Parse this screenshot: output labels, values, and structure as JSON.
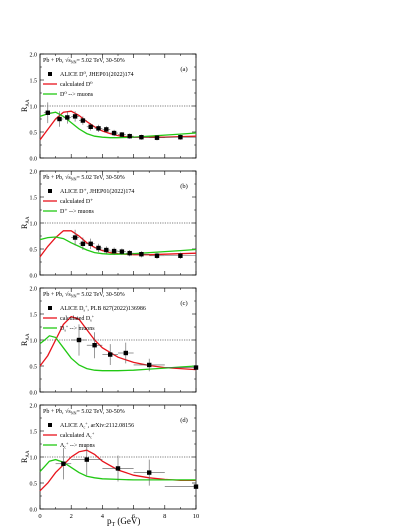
{
  "figure": {
    "xlabel_main": "p",
    "xlabel_sub": "T",
    "xlabel_unit": " (GeV)",
    "ylabel_main": "R",
    "ylabel_sub": "AA",
    "colors": {
      "model": "#e8141c",
      "muon": "#22c814",
      "data": "#000000",
      "ref_line": "#555555"
    }
  },
  "chart_data": [
    {
      "type": "line",
      "panel_label": "(a)",
      "header": {
        "system": "Pb + Pb,",
        "sqrt": "√s",
        "nn": "NN",
        "rest": "= 5.02 TeV, 30-50%"
      },
      "legend": {
        "data_label": "ALICE D⁰, JHEP01(2022)174",
        "model_label": "calculated D⁰",
        "muon_label": "D⁰ --> muons"
      },
      "xlim": [
        0,
        10
      ],
      "ylim": [
        0,
        2.0
      ],
      "x_ticks": [
        0,
        2,
        4,
        6,
        8,
        10
      ],
      "y_ticks": [
        "0.0",
        "0.5",
        "1.0",
        "1.5",
        "2.0"
      ],
      "x_tick_labels": [],
      "reference_line": 1.0,
      "data_points": [
        {
          "x": 0.5,
          "y": 0.87,
          "err": 0.2,
          "xerr": 0.25
        },
        {
          "x": 1.25,
          "y": 0.75,
          "err": 0.15,
          "xerr": 0.25
        },
        {
          "x": 1.75,
          "y": 0.78,
          "err": 0.12,
          "xerr": 0.25
        },
        {
          "x": 2.25,
          "y": 0.8,
          "err": 0.1,
          "xerr": 0.25
        },
        {
          "x": 2.75,
          "y": 0.72,
          "err": 0.08,
          "xerr": 0.25
        },
        {
          "x": 3.25,
          "y": 0.6,
          "err": 0.07,
          "xerr": 0.25
        },
        {
          "x": 3.75,
          "y": 0.57,
          "err": 0.07,
          "xerr": 0.25
        },
        {
          "x": 4.25,
          "y": 0.55,
          "err": 0.06,
          "xerr": 0.25
        },
        {
          "x": 4.75,
          "y": 0.48,
          "err": 0.06,
          "xerr": 0.25
        },
        {
          "x": 5.25,
          "y": 0.45,
          "err": 0.05,
          "xerr": 0.25
        },
        {
          "x": 5.75,
          "y": 0.42,
          "err": 0.05,
          "xerr": 0.25
        },
        {
          "x": 6.5,
          "y": 0.4,
          "err": 0.05,
          "xerr": 0.5
        },
        {
          "x": 7.5,
          "y": 0.39,
          "err": 0.05,
          "xerr": 0.5
        },
        {
          "x": 9.0,
          "y": 0.4,
          "err": 0.05,
          "xerr": 1.0
        }
      ],
      "series": [
        {
          "role": "model",
          "x": [
            0,
            0.5,
            1,
            1.5,
            2,
            2.5,
            3,
            3.5,
            4,
            4.5,
            5,
            5.5,
            6,
            7,
            8,
            9,
            10
          ],
          "y": [
            0.35,
            0.55,
            0.75,
            0.88,
            0.9,
            0.82,
            0.7,
            0.6,
            0.52,
            0.47,
            0.43,
            0.41,
            0.4,
            0.4,
            0.4,
            0.41,
            0.42
          ]
        },
        {
          "role": "muon",
          "x": [
            0,
            0.5,
            1,
            1.5,
            2,
            2.5,
            3,
            3.5,
            4,
            4.5,
            5,
            6,
            7,
            8,
            9,
            10
          ],
          "y": [
            0.8,
            0.85,
            0.88,
            0.8,
            0.68,
            0.56,
            0.47,
            0.42,
            0.4,
            0.39,
            0.39,
            0.4,
            0.42,
            0.44,
            0.46,
            0.48
          ]
        }
      ]
    },
    {
      "type": "line",
      "panel_label": "(b)",
      "header": {
        "system": "Pb + Pb,",
        "sqrt": "√s",
        "nn": "NN",
        "rest": "= 5.02 TeV, 30-50%"
      },
      "legend": {
        "data_label": "ALICE D⁺, JHEP01(2022)174",
        "model_label": "calculated D⁺",
        "muon_label": "D⁺ --> muons"
      },
      "xlim": [
        0,
        10
      ],
      "ylim": [
        0,
        2.0
      ],
      "x_ticks": [
        0,
        2,
        4,
        6,
        8,
        10
      ],
      "y_ticks": [
        "0.0",
        "0.5",
        "1.0",
        "1.5",
        "2.0"
      ],
      "x_tick_labels": [],
      "reference_line": 1.0,
      "data_points": [
        {
          "x": 2.25,
          "y": 0.72,
          "err": 0.15,
          "xerr": 0.25
        },
        {
          "x": 2.75,
          "y": 0.6,
          "err": 0.12,
          "xerr": 0.25
        },
        {
          "x": 3.25,
          "y": 0.6,
          "err": 0.1,
          "xerr": 0.25
        },
        {
          "x": 3.75,
          "y": 0.52,
          "err": 0.08,
          "xerr": 0.25
        },
        {
          "x": 4.25,
          "y": 0.48,
          "err": 0.07,
          "xerr": 0.25
        },
        {
          "x": 4.75,
          "y": 0.46,
          "err": 0.07,
          "xerr": 0.25
        },
        {
          "x": 5.25,
          "y": 0.45,
          "err": 0.06,
          "xerr": 0.25
        },
        {
          "x": 5.75,
          "y": 0.42,
          "err": 0.06,
          "xerr": 0.25
        },
        {
          "x": 6.5,
          "y": 0.4,
          "err": 0.06,
          "xerr": 0.5
        },
        {
          "x": 7.5,
          "y": 0.37,
          "err": 0.06,
          "xerr": 0.5
        },
        {
          "x": 9.0,
          "y": 0.37,
          "err": 0.06,
          "xerr": 1.0
        }
      ],
      "series": [
        {
          "role": "model",
          "x": [
            0,
            0.5,
            1,
            1.5,
            2,
            2.5,
            3,
            3.5,
            4,
            4.5,
            5,
            5.5,
            6,
            7,
            8,
            9,
            10
          ],
          "y": [
            0.35,
            0.55,
            0.72,
            0.85,
            0.85,
            0.75,
            0.62,
            0.53,
            0.47,
            0.43,
            0.41,
            0.4,
            0.39,
            0.39,
            0.4,
            0.41,
            0.42
          ]
        },
        {
          "role": "muon",
          "x": [
            0,
            0.5,
            1,
            1.5,
            2,
            2.5,
            3,
            3.5,
            4,
            4.5,
            5,
            6,
            7,
            8,
            9,
            10
          ],
          "y": [
            0.68,
            0.72,
            0.73,
            0.7,
            0.62,
            0.55,
            0.48,
            0.43,
            0.41,
            0.4,
            0.4,
            0.41,
            0.43,
            0.45,
            0.47,
            0.49
          ]
        }
      ]
    },
    {
      "type": "line",
      "panel_label": "(c)",
      "header": {
        "system": "Pb + Pb,",
        "sqrt": "√s",
        "nn": "NN",
        "rest": "= 5.02 TeV, 30-50%"
      },
      "legend": {
        "data_label": "ALICE D",
        "data_sub": "s",
        "data_sup": "+",
        "data_rest": ", PLB 827(2022)136986",
        "model_label": "calculated D",
        "model_sub": "s",
        "model_sup": "+",
        "muon_label": "D",
        "muon_sub": "s",
        "muon_sup": "+",
        "muon_rest": " --> muons"
      },
      "xlim": [
        0,
        10
      ],
      "ylim": [
        0,
        2.0
      ],
      "x_ticks": [
        0,
        2,
        4,
        6,
        8,
        10
      ],
      "y_ticks": [
        "0.0",
        "0.5",
        "1.0",
        "1.5",
        "2.0"
      ],
      "x_tick_labels": [],
      "reference_line": 1.0,
      "data_points": [
        {
          "x": 2.5,
          "y": 1.0,
          "err": 0.3,
          "xerr": 0.5
        },
        {
          "x": 3.5,
          "y": 0.9,
          "err": 0.25,
          "xerr": 0.5
        },
        {
          "x": 4.5,
          "y": 0.72,
          "err": 0.2,
          "xerr": 0.5
        },
        {
          "x": 5.5,
          "y": 0.75,
          "err": 0.2,
          "xerr": 0.5
        },
        {
          "x": 7.0,
          "y": 0.52,
          "err": 0.12,
          "xerr": 1.0
        },
        {
          "x": 10.0,
          "y": 0.47,
          "err": 0.08,
          "xerr": 2.0
        }
      ],
      "series": [
        {
          "role": "model",
          "x": [
            0,
            0.5,
            1,
            1.5,
            2,
            2.5,
            3,
            3.5,
            4,
            5,
            6,
            7,
            8,
            9,
            10
          ],
          "y": [
            0.5,
            0.7,
            1.0,
            1.3,
            1.45,
            1.4,
            1.2,
            1.0,
            0.85,
            0.67,
            0.57,
            0.51,
            0.47,
            0.45,
            0.43
          ]
        },
        {
          "role": "muon",
          "x": [
            0,
            0.3,
            0.6,
            1,
            1.5,
            2,
            2.5,
            3,
            3.5,
            4,
            5,
            6,
            7,
            8,
            9,
            10
          ],
          "y": [
            0.93,
            1.0,
            1.08,
            1.05,
            0.85,
            0.65,
            0.52,
            0.45,
            0.42,
            0.41,
            0.41,
            0.42,
            0.44,
            0.46,
            0.48,
            0.5
          ]
        }
      ]
    },
    {
      "type": "line",
      "panel_label": "(d)",
      "header": {
        "system": "Pb + Pb,",
        "sqrt": "√s",
        "nn": "NN",
        "rest": "= 5.02 TeV, 30-50%"
      },
      "legend": {
        "data_label": "ALICE Λ",
        "data_sub": "c",
        "data_sup": "+",
        "data_rest": ", arXiv:2112.08156",
        "model_label": "calculated Λ",
        "model_sub": "c",
        "model_sup": "+",
        "muon_label": "Λ",
        "muon_sub": "c",
        "muon_sup": "+",
        "muon_rest": " --> muons"
      },
      "xlim": [
        0,
        10
      ],
      "ylim": [
        0,
        2.0
      ],
      "x_ticks": [
        0,
        2,
        4,
        6,
        8,
        10
      ],
      "y_ticks": [
        "0.0",
        "0.5",
        "1.0",
        "1.5",
        "2.0"
      ],
      "x_tick_labels": [
        "0",
        "2",
        "4",
        "6",
        "8",
        "10"
      ],
      "reference_line": 1.0,
      "data_points": [
        {
          "x": 1.5,
          "y": 0.87,
          "err": 0.3,
          "xerr": 0.5
        },
        {
          "x": 3.0,
          "y": 0.95,
          "err": 0.3,
          "xerr": 1.0
        },
        {
          "x": 5.0,
          "y": 0.78,
          "err": 0.25,
          "xerr": 1.0
        },
        {
          "x": 7.0,
          "y": 0.7,
          "err": 0.25,
          "xerr": 1.0
        },
        {
          "x": 10.0,
          "y": 0.43,
          "err": 0.15,
          "xerr": 2.0
        }
      ],
      "series": [
        {
          "role": "model",
          "x": [
            0,
            0.5,
            1,
            1.5,
            2,
            2.5,
            3,
            3.5,
            4,
            5,
            6,
            7,
            8,
            9,
            10
          ],
          "y": [
            0.35,
            0.5,
            0.7,
            0.85,
            1.0,
            1.1,
            1.13,
            1.05,
            0.92,
            0.75,
            0.65,
            0.6,
            0.57,
            0.55,
            0.55
          ]
        },
        {
          "role": "muon",
          "x": [
            0,
            0.3,
            0.6,
            1,
            1.5,
            2,
            2.5,
            3,
            3.5,
            4,
            5,
            6,
            7,
            8,
            9,
            10
          ],
          "y": [
            0.72,
            0.82,
            0.92,
            0.95,
            0.9,
            0.8,
            0.7,
            0.63,
            0.6,
            0.58,
            0.57,
            0.56,
            0.56,
            0.56,
            0.56,
            0.56
          ]
        }
      ]
    }
  ]
}
